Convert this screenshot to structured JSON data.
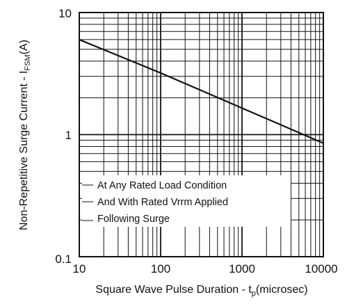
{
  "chart_data": {
    "type": "line",
    "title": "",
    "xlabel_parts": [
      "Square Wave Pulse Duration - t",
      "p",
      "(microsec)"
    ],
    "ylabel_parts": [
      "Non-Repetitive Surge Current - I",
      "FSM",
      "(A)"
    ],
    "xscale": "log",
    "yscale": "log",
    "xlim": [
      10,
      10000
    ],
    "ylim": [
      0.1,
      10
    ],
    "grid": true,
    "x_ticks": [
      10,
      100,
      1000,
      10000
    ],
    "x_tick_labels": [
      "10",
      "100",
      "1000",
      "10000"
    ],
    "y_ticks": [
      0.1,
      1,
      10
    ],
    "y_tick_labels": [
      "0.1",
      "1",
      "10"
    ],
    "series": [
      {
        "x": [
          10,
          100,
          1000,
          10000
        ],
        "y": [
          6,
          3.2,
          1.65,
          0.85
        ]
      }
    ],
    "annotations": [
      "At Any Rated Load Condition",
      "And With Rated Vrrm Applied",
      "Following Surge"
    ],
    "colors": {
      "line": "#111111",
      "grid": "#111111",
      "background": "#ffffff"
    }
  }
}
